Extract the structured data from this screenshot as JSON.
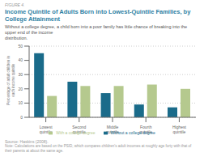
{
  "chart_data": {
    "type": "bar",
    "figure_label": "FIGURE 4.",
    "title": "Income Quintile of Adults Born into Lowest-Quintile Families, by College Attainment",
    "subtitle": "Without a college degree, a child born into a poor family has little chance of breaking into the upper end of the income\ndistribution.",
    "categories": [
      "Lowest quintile",
      "Second quintile",
      "Middle quintile",
      "Fourth quintile",
      "Highest quintile"
    ],
    "series": [
      {
        "name": "Without a college degree",
        "color": "#1a6b8a",
        "values": [
          45,
          25,
          17,
          9,
          7
        ]
      },
      {
        "name": "With a college degree",
        "color": "#b5c98e",
        "values": [
          15,
          22,
          22,
          23,
          20
        ]
      }
    ],
    "ylabel": "Percentage of adult children in\neach income quintile",
    "ylim": [
      0,
      50
    ],
    "yticks": [
      0,
      10,
      20,
      30,
      40,
      50
    ],
    "grid": true,
    "legend": "bottom",
    "source": "Source: Haskins (2008).",
    "note": "Note: Calculations are based on the PSID, which compares children's adult incomes at roughly age forty with that of their parents at about the same age."
  }
}
